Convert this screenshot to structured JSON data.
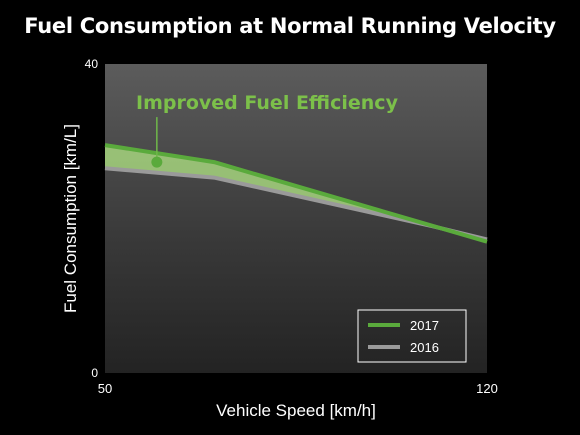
{
  "chart_data": {
    "type": "area",
    "title": "Fuel Consumption at Normal Running Velocity",
    "xlabel": "Vehicle Speed [km/h]",
    "ylabel": "Fuel Consumption [km/L]",
    "xlim": [
      50,
      120
    ],
    "ylim": [
      0,
      40
    ],
    "x_ticks": [
      "50",
      "120"
    ],
    "y_ticks": [
      "0",
      "40"
    ],
    "series": [
      {
        "name": "2017",
        "color": "#5aaa3c",
        "x": [
          50,
          70,
          120
        ],
        "values": [
          29.5,
          27.3,
          17.0
        ]
      },
      {
        "name": "2016",
        "color": "#9a9a9a",
        "x": [
          50,
          70,
          110,
          120
        ],
        "values": [
          26.5,
          25.3,
          19.0,
          17.3
        ]
      }
    ],
    "annotation": {
      "text": "Improved Fuel Efficiency",
      "color": "#7cc04a",
      "x": 59.5,
      "y": 27.3
    },
    "legend_position": "bottom-right",
    "grid": false
  }
}
